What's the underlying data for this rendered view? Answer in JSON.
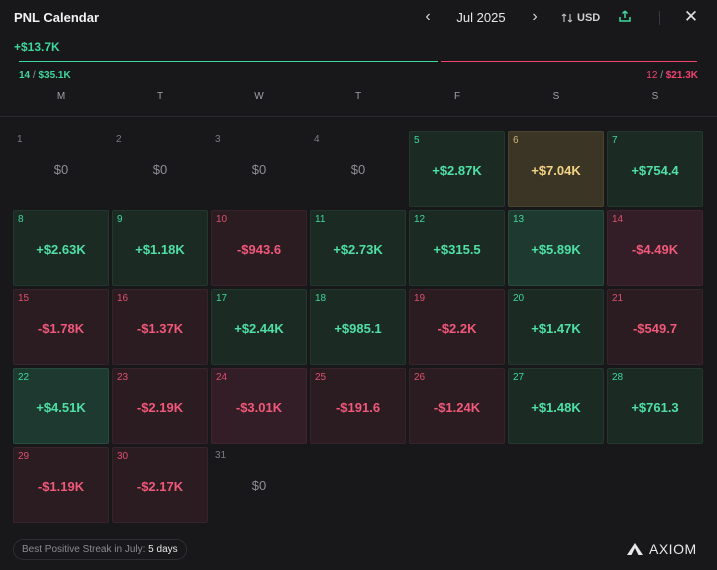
{
  "header": {
    "title": "PNL Calendar",
    "month": "Jul 2025",
    "currency": "USD",
    "prev_icon": "chevron-left-icon",
    "next_icon": "chevron-right-icon",
    "swap_icon": "swap-vertical-icon",
    "share_icon": "share-upload-icon",
    "close_icon": "close-icon"
  },
  "summary": {
    "total": "+$13.7K",
    "positive_days": "14",
    "positive_amount": "$35.1K",
    "negative_days": "12",
    "negative_amount": "$21.3K",
    "positive_share": 0.62,
    "separator": "/"
  },
  "weekdays": [
    "M",
    "T",
    "W",
    "T",
    "F",
    "S",
    "S"
  ],
  "days": [
    {
      "day": "1",
      "value": "$0",
      "tone": "empty"
    },
    {
      "day": "2",
      "value": "$0",
      "tone": "empty"
    },
    {
      "day": "3",
      "value": "$0",
      "tone": "empty"
    },
    {
      "day": "4",
      "value": "$0",
      "tone": "empty"
    },
    {
      "day": "5",
      "value": "+$2.87K",
      "tone": "pos"
    },
    {
      "day": "6",
      "value": "+$7.04K",
      "tone": "gold"
    },
    {
      "day": "7",
      "value": "+$754.4",
      "tone": "pos"
    },
    {
      "day": "8",
      "value": "+$2.63K",
      "tone": "pos"
    },
    {
      "day": "9",
      "value": "+$1.18K",
      "tone": "pos"
    },
    {
      "day": "10",
      "value": "-$943.6",
      "tone": "neg"
    },
    {
      "day": "11",
      "value": "+$2.73K",
      "tone": "pos"
    },
    {
      "day": "12",
      "value": "+$315.5",
      "tone": "pos"
    },
    {
      "day": "13",
      "value": "+$5.89K",
      "tone": "pos2"
    },
    {
      "day": "14",
      "value": "-$4.49K",
      "tone": "neg2"
    },
    {
      "day": "15",
      "value": "-$1.78K",
      "tone": "neg"
    },
    {
      "day": "16",
      "value": "-$1.37K",
      "tone": "neg"
    },
    {
      "day": "17",
      "value": "+$2.44K",
      "tone": "pos"
    },
    {
      "day": "18",
      "value": "+$985.1",
      "tone": "pos"
    },
    {
      "day": "19",
      "value": "-$2.2K",
      "tone": "neg"
    },
    {
      "day": "20",
      "value": "+$1.47K",
      "tone": "pos"
    },
    {
      "day": "21",
      "value": "-$549.7",
      "tone": "neg"
    },
    {
      "day": "22",
      "value": "+$4.51K",
      "tone": "pos2"
    },
    {
      "day": "23",
      "value": "-$2.19K",
      "tone": "neg"
    },
    {
      "day": "24",
      "value": "-$3.01K",
      "tone": "neg2"
    },
    {
      "day": "25",
      "value": "-$191.6",
      "tone": "neg"
    },
    {
      "day": "26",
      "value": "-$1.24K",
      "tone": "neg"
    },
    {
      "day": "27",
      "value": "+$1.48K",
      "tone": "pos"
    },
    {
      "day": "28",
      "value": "+$761.3",
      "tone": "pos"
    },
    {
      "day": "29",
      "value": "-$1.19K",
      "tone": "neg"
    },
    {
      "day": "30",
      "value": "-$2.17K",
      "tone": "neg"
    },
    {
      "day": "31",
      "value": "$0",
      "tone": "empty"
    }
  ],
  "first_weekday_offset": 0,
  "footer": {
    "streak_label": "Best Positive Streak in July:",
    "streak_value": "5 days",
    "logo_text": "AXIOM",
    "logo_icon": "axiom-logo-icon"
  },
  "colors": {
    "background": "#18181b",
    "positive": "#3fd89c",
    "negative": "#f2436f",
    "best_day": "#f4d384"
  }
}
